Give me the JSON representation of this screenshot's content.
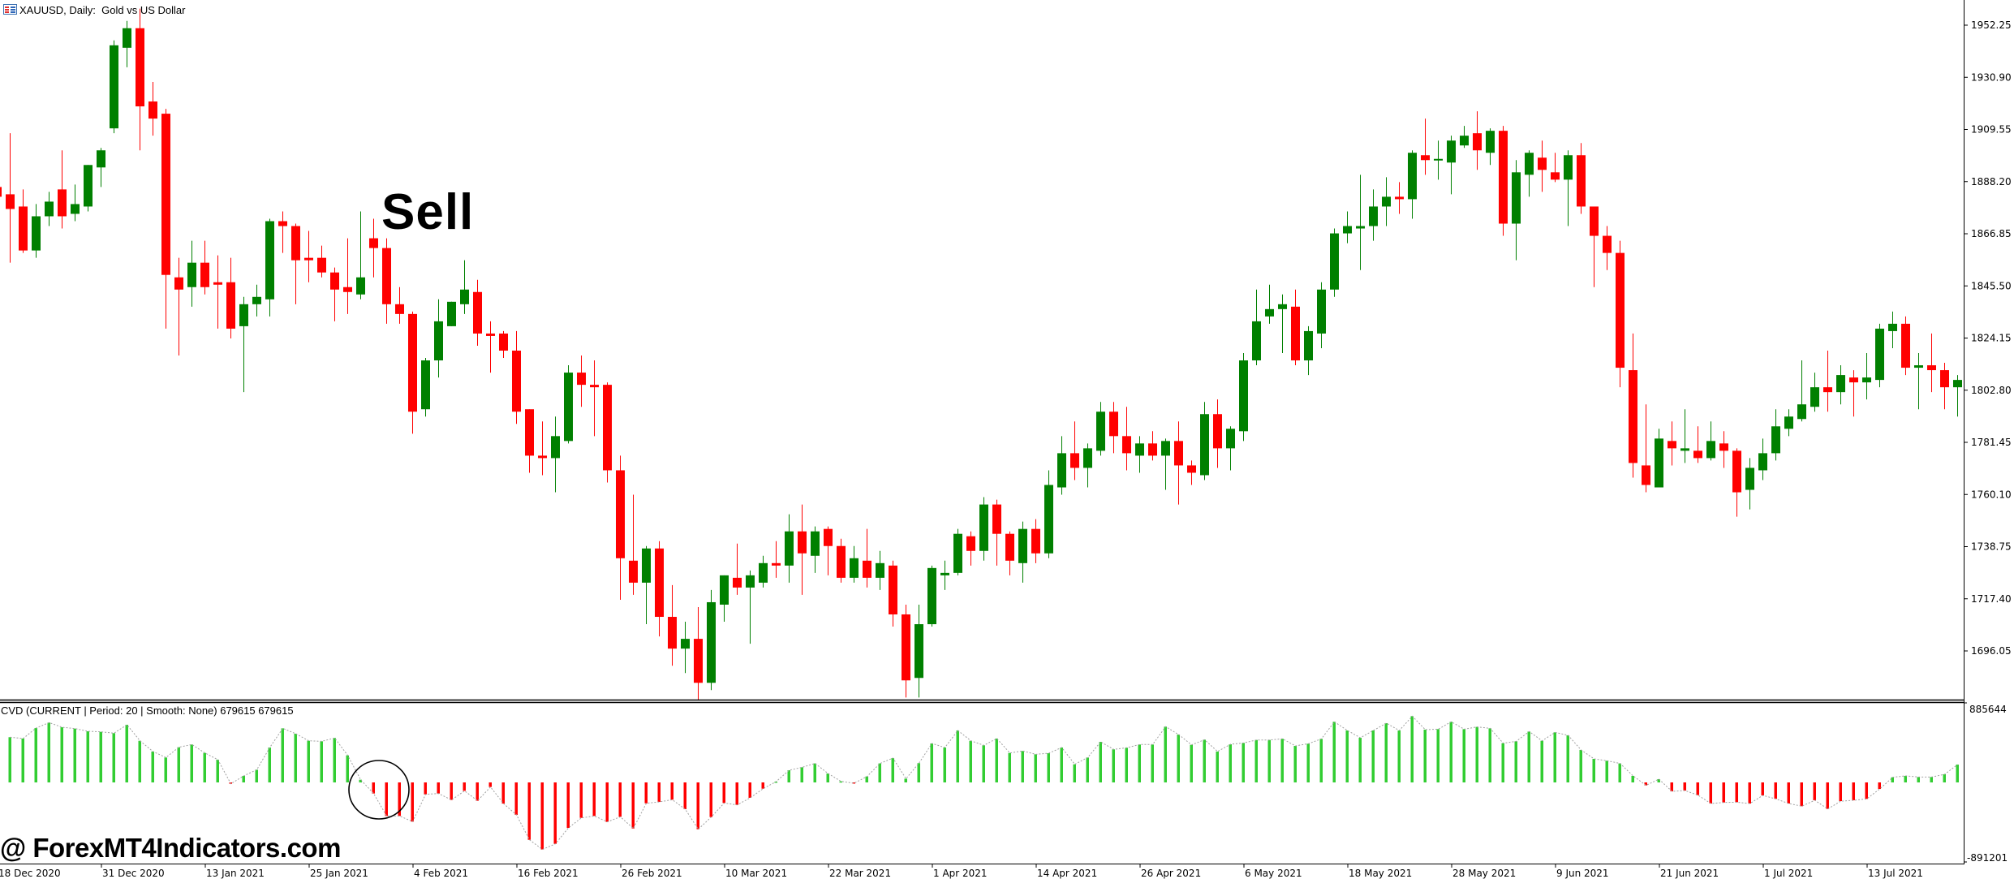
{
  "window": {
    "title": "XAUUSD, Daily:  Gold vs US Dollar",
    "icon": "chart-window-icon"
  },
  "annotation": {
    "text": "Sell"
  },
  "watermark": {
    "text": "@ ForexMT4Indicators.com"
  },
  "indicator": {
    "label": "CVD (CURRENT | Period: 20 | Smooth: None) 679615 679615",
    "max_label": "885644",
    "min_label": "-891201"
  },
  "colors": {
    "bull_candle": "#008000",
    "bear_candle": "#ff0000",
    "cvd_positive": "#32cd32",
    "cvd_negative": "#ff0000",
    "cvd_line": "#a0a0a0"
  },
  "chart_data": [
    {
      "type": "candlestick",
      "symbol": "XAUUSD",
      "timeframe": "Daily",
      "ylim": [
        1680,
        1960
      ],
      "y_ticks": [
        "1952.25",
        "1930.90",
        "1909.55",
        "1888.20",
        "1866.85",
        "1845.50",
        "1824.15",
        "1802.80",
        "1781.45",
        "1760.10",
        "1738.75",
        "1717.40",
        "1696.05"
      ],
      "x_tick_labels": [
        "18 Dec 2020",
        "31 Dec 2020",
        "13 Jan 2021",
        "25 Jan 2021",
        "4 Feb 2021",
        "16 Feb 2021",
        "26 Feb 2021",
        "10 Mar 2021",
        "22 Mar 2021",
        "1 Apr 2021",
        "14 Apr 2021",
        "26 Apr 2021",
        "6 May 2021",
        "18 May 2021",
        "28 May 2021",
        "9 Jun 2021",
        "21 Jun 2021",
        "1 Jul 2021",
        "13 Jul 2021"
      ],
      "ohlc_fields": [
        "open",
        "high",
        "low",
        "close"
      ],
      "ohlc": [
        [
          1886,
          1887,
          1881,
          1882
        ],
        [
          1883,
          1908,
          1855,
          1877
        ],
        [
          1878,
          1885,
          1859,
          1860
        ],
        [
          1860,
          1879,
          1857,
          1874
        ],
        [
          1874,
          1884,
          1870,
          1880
        ],
        [
          1885,
          1901,
          1869,
          1874
        ],
        [
          1875,
          1887,
          1872,
          1879
        ],
        [
          1878,
          1895,
          1876,
          1895
        ],
        [
          1894,
          1902,
          1886,
          1901
        ],
        [
          1910,
          1946,
          1908,
          1944
        ],
        [
          1943,
          1954,
          1935,
          1951
        ],
        [
          1951,
          1959,
          1901,
          1919
        ],
        [
          1921,
          1929,
          1907,
          1914
        ],
        [
          1916,
          1918,
          1828,
          1850
        ],
        [
          1849,
          1857,
          1817,
          1844
        ],
        [
          1845,
          1864,
          1837,
          1855
        ],
        [
          1855,
          1864,
          1842,
          1845
        ],
        [
          1847,
          1858,
          1828,
          1846
        ],
        [
          1847,
          1857,
          1824,
          1828
        ],
        [
          1829,
          1841,
          1802,
          1838
        ],
        [
          1838,
          1846,
          1833,
          1841
        ],
        [
          1840,
          1873,
          1833,
          1872
        ],
        [
          1872,
          1876,
          1859,
          1870
        ],
        [
          1870,
          1871,
          1838,
          1856
        ],
        [
          1857,
          1868,
          1847,
          1856
        ],
        [
          1857,
          1862,
          1849,
          1851
        ],
        [
          1851,
          1853,
          1831,
          1844
        ],
        [
          1845,
          1865,
          1834,
          1843
        ],
        [
          1842,
          1876,
          1840,
          1849
        ],
        [
          1865,
          1873,
          1849,
          1861
        ],
        [
          1861,
          1865,
          1830,
          1838
        ],
        [
          1838,
          1845,
          1830,
          1834
        ],
        [
          1834,
          1835,
          1785,
          1794
        ],
        [
          1795,
          1816,
          1792,
          1815
        ],
        [
          1815,
          1840,
          1808,
          1831
        ],
        [
          1829,
          1839,
          1829,
          1839
        ],
        [
          1838,
          1856,
          1834,
          1844
        ],
        [
          1843,
          1848,
          1821,
          1826
        ],
        [
          1826,
          1831,
          1810,
          1825
        ],
        [
          1826,
          1827,
          1816,
          1819
        ],
        [
          1819,
          1827,
          1789,
          1794
        ],
        [
          1795,
          1795,
          1769,
          1776
        ],
        [
          1776,
          1790,
          1768,
          1775
        ],
        [
          1775,
          1792,
          1761,
          1784
        ],
        [
          1782,
          1813,
          1781,
          1810
        ],
        [
          1810,
          1817,
          1796,
          1805
        ],
        [
          1805,
          1815,
          1784,
          1804
        ],
        [
          1805,
          1806,
          1765,
          1770
        ],
        [
          1770,
          1776,
          1717,
          1734
        ],
        [
          1733,
          1760,
          1719,
          1724
        ],
        [
          1724,
          1739,
          1707,
          1738
        ],
        [
          1738,
          1741,
          1702,
          1710
        ],
        [
          1710,
          1723,
          1690,
          1697
        ],
        [
          1697,
          1708,
          1687,
          1701
        ],
        [
          1701,
          1714,
          1676,
          1683
        ],
        [
          1683,
          1721,
          1680,
          1716
        ],
        [
          1715,
          1727,
          1708,
          1727
        ],
        [
          1726,
          1740,
          1719,
          1722
        ],
        [
          1722,
          1729,
          1699,
          1727
        ],
        [
          1724,
          1735,
          1722,
          1732
        ],
        [
          1732,
          1741,
          1726,
          1731
        ],
        [
          1731,
          1752,
          1724,
          1745
        ],
        [
          1745,
          1756,
          1719,
          1736
        ],
        [
          1735,
          1747,
          1728,
          1745
        ],
        [
          1746,
          1747,
          1727,
          1739
        ],
        [
          1739,
          1742,
          1724,
          1726
        ],
        [
          1726,
          1739,
          1724,
          1734
        ],
        [
          1733,
          1746,
          1722,
          1726
        ],
        [
          1726,
          1737,
          1721,
          1732
        ],
        [
          1731,
          1733,
          1706,
          1711
        ],
        [
          1711,
          1715,
          1677,
          1684
        ],
        [
          1685,
          1715,
          1677,
          1707
        ],
        [
          1707,
          1731,
          1706,
          1730
        ],
        [
          1727,
          1733,
          1721,
          1728
        ],
        [
          1728,
          1746,
          1727,
          1744
        ],
        [
          1743,
          1745,
          1731,
          1737
        ],
        [
          1737,
          1759,
          1733,
          1756
        ],
        [
          1756,
          1758,
          1731,
          1744
        ],
        [
          1744,
          1745,
          1727,
          1733
        ],
        [
          1732,
          1749,
          1724,
          1746
        ],
        [
          1746,
          1750,
          1732,
          1736
        ],
        [
          1736,
          1770,
          1734,
          1764
        ],
        [
          1763,
          1784,
          1760,
          1777
        ],
        [
          1777,
          1790,
          1766,
          1771
        ],
        [
          1771,
          1781,
          1763,
          1779
        ],
        [
          1778,
          1798,
          1776,
          1794
        ],
        [
          1794,
          1798,
          1777,
          1784
        ],
        [
          1784,
          1796,
          1770,
          1777
        ],
        [
          1776,
          1784,
          1769,
          1781
        ],
        [
          1781,
          1786,
          1774,
          1776
        ],
        [
          1776,
          1783,
          1762,
          1782
        ],
        [
          1782,
          1790,
          1756,
          1772
        ],
        [
          1772,
          1774,
          1764,
          1769
        ],
        [
          1768,
          1798,
          1766,
          1793
        ],
        [
          1793,
          1799,
          1771,
          1779
        ],
        [
          1779,
          1788,
          1770,
          1787
        ],
        [
          1786,
          1818,
          1782,
          1815
        ],
        [
          1815,
          1844,
          1813,
          1831
        ],
        [
          1833,
          1846,
          1830,
          1836
        ],
        [
          1836,
          1842,
          1818,
          1838
        ],
        [
          1837,
          1844,
          1813,
          1815
        ],
        [
          1815,
          1829,
          1809,
          1827
        ],
        [
          1826,
          1847,
          1820,
          1844
        ],
        [
          1844,
          1869,
          1841,
          1867
        ],
        [
          1867,
          1876,
          1863,
          1870
        ],
        [
          1869,
          1891,
          1852,
          1870
        ],
        [
          1870,
          1885,
          1864,
          1878
        ],
        [
          1878,
          1890,
          1870,
          1882
        ],
        [
          1882,
          1888,
          1875,
          1881
        ],
        [
          1881,
          1901,
          1873,
          1900
        ],
        [
          1899,
          1914,
          1891,
          1897
        ],
        [
          1897,
          1905,
          1889,
          1897.5
        ],
        [
          1896,
          1907,
          1883,
          1905
        ],
        [
          1903,
          1911,
          1902,
          1907
        ],
        [
          1908,
          1917,
          1893,
          1901
        ],
        [
          1900,
          1910,
          1895,
          1909
        ],
        [
          1909,
          1911,
          1866,
          1871
        ],
        [
          1871,
          1897,
          1856,
          1892
        ],
        [
          1891,
          1901,
          1882,
          1900
        ],
        [
          1898,
          1905,
          1884,
          1893
        ],
        [
          1892,
          1900,
          1888,
          1889
        ],
        [
          1889,
          1901,
          1870,
          1899
        ],
        [
          1899,
          1904,
          1875,
          1878
        ],
        [
          1878,
          1878,
          1845,
          1866
        ],
        [
          1866,
          1870,
          1852,
          1859
        ],
        [
          1859,
          1864,
          1804,
          1812
        ],
        [
          1811,
          1826,
          1767,
          1773
        ],
        [
          1772,
          1797,
          1761,
          1764
        ],
        [
          1763,
          1787,
          1763,
          1783
        ],
        [
          1782,
          1790,
          1772,
          1779
        ],
        [
          1778,
          1795,
          1773,
          1779
        ],
        [
          1778,
          1788,
          1773,
          1775
        ],
        [
          1775,
          1790,
          1774,
          1782
        ],
        [
          1781,
          1786,
          1771,
          1778
        ],
        [
          1778,
          1779,
          1751,
          1761
        ],
        [
          1762,
          1775,
          1754,
          1771
        ],
        [
          1770,
          1783,
          1766,
          1777
        ],
        [
          1777,
          1795,
          1774,
          1788
        ],
        [
          1787,
          1795,
          1784,
          1792
        ],
        [
          1791,
          1815,
          1790,
          1797
        ],
        [
          1796,
          1810,
          1794,
          1804
        ],
        [
          1804,
          1819,
          1794,
          1802
        ],
        [
          1802,
          1813,
          1797,
          1809
        ],
        [
          1808,
          1811,
          1792,
          1806
        ],
        [
          1806,
          1818,
          1799,
          1808
        ],
        [
          1807,
          1830,
          1804,
          1828
        ],
        [
          1827,
          1835,
          1820,
          1830
        ],
        [
          1830,
          1833,
          1809,
          1812
        ],
        [
          1812,
          1818,
          1795,
          1813
        ],
        [
          1813,
          1826,
          1802,
          1811
        ],
        [
          1811,
          1814,
          1795,
          1804
        ],
        [
          1804,
          1809,
          1792,
          1807
        ]
      ]
    },
    {
      "type": "bar",
      "name": "CVD",
      "ylim": [
        -891201,
        885644
      ],
      "values": [
        null,
        505000,
        490000,
        607000,
        668000,
        616000,
        601000,
        571000,
        565000,
        550000,
        644000,
        465000,
        345000,
        278000,
        393000,
        423000,
        329000,
        254000,
        -15000,
        73000,
        142000,
        390000,
        604000,
        544000,
        465000,
        459000,
        496000,
        302000,
        30000,
        -124000,
        -375000,
        -375000,
        -438000,
        -133000,
        -124000,
        -196000,
        -94000,
        -205000,
        -51000,
        -236000,
        -363000,
        -641000,
        -749000,
        -686000,
        -508000,
        -396000,
        -375000,
        -441000,
        -384000,
        -514000,
        -233000,
        -218000,
        -193000,
        -299000,
        -523000,
        -387000,
        -230000,
        -251000,
        -172000,
        -70000,
        9000,
        136000,
        169000,
        212000,
        100000,
        12000,
        -9000,
        66000,
        212000,
        272000,
        42000,
        215000,
        435000,
        390000,
        580000,
        465000,
        414000,
        490000,
        329000,
        351000,
        314000,
        326000,
        390000,
        202000,
        278000,
        453000,
        369000,
        387000,
        423000,
        423000,
        623000,
        535000,
        420000,
        477000,
        345000,
        426000,
        441000,
        474000,
        474000,
        487000,
        408000,
        432000,
        487000,
        677000,
        580000,
        499000,
        580000,
        662000,
        580000,
        740000,
        589000,
        595000,
        677000,
        595000,
        620000,
        604000,
        438000,
        459000,
        568000,
        465000,
        559000,
        526000,
        363000,
        263000,
        242000,
        212000,
        73000,
        -33000,
        36000,
        -100000,
        -91000,
        -142000,
        -236000,
        -224000,
        -221000,
        -236000,
        -145000,
        -184000,
        -236000,
        -266000,
        -199000,
        -296000,
        -209000,
        -199000,
        -184000,
        -73000,
        57000,
        73000,
        60000,
        60000,
        91000,
        199000
      ]
    }
  ]
}
